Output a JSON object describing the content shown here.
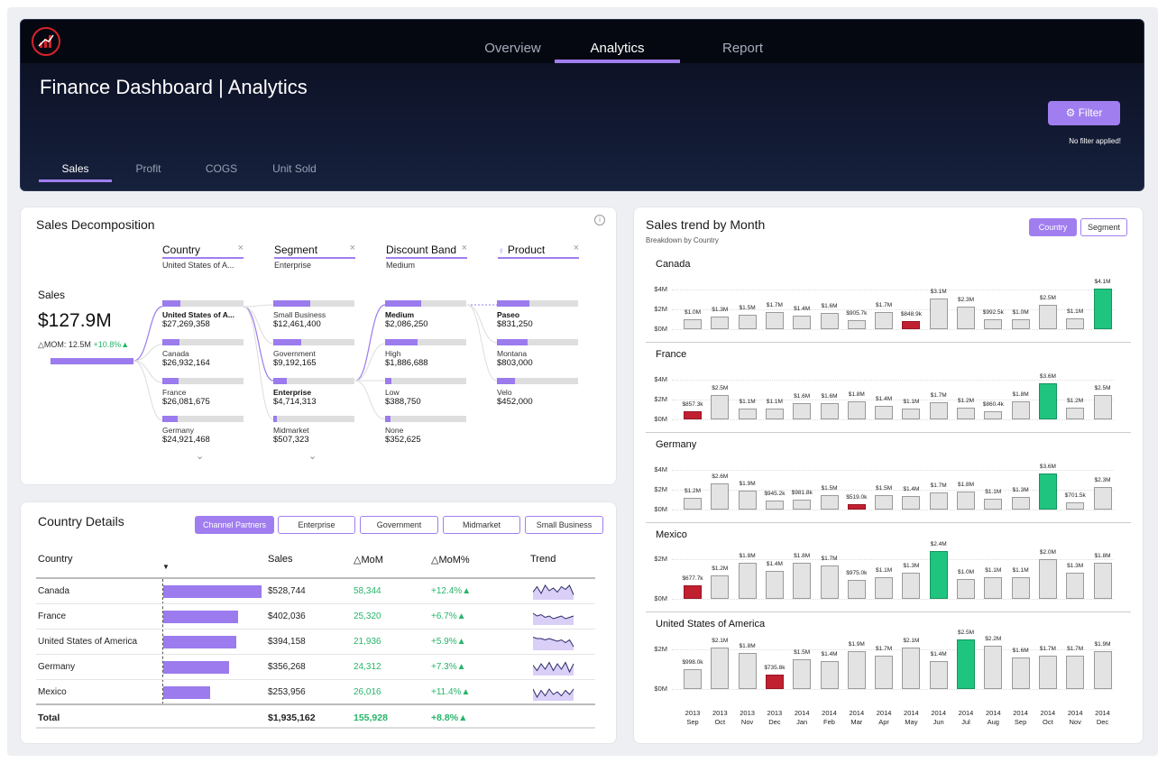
{
  "header": {
    "nav": [
      "Overview",
      "Analytics",
      "Report"
    ],
    "active_nav": "Analytics",
    "title": "Finance Dashboard | Analytics",
    "filter_label": "Filter",
    "filter_status": "No filter applied!",
    "measure_tabs": [
      "Sales",
      "Profit",
      "COGS",
      "Unit Sold"
    ],
    "accent": "#a07ef0"
  },
  "decomposition": {
    "title": "Sales Decomposition",
    "root": {
      "label": "Sales",
      "value": "$127.9M",
      "mom_label": "△MOM: 12.5M",
      "mom_pct": "+10.8%▲"
    },
    "levels": [
      {
        "header": "Country",
        "selected": "United States of A...",
        "nodes": [
          {
            "name": "United States of A...",
            "value": "$27,269,358",
            "frac": 0.22,
            "bold": true
          },
          {
            "name": "Canada",
            "value": "$26,932,164",
            "frac": 0.21
          },
          {
            "name": "France",
            "value": "$26,081,675",
            "frac": 0.2
          },
          {
            "name": "Germany",
            "value": "$24,921,468",
            "frac": 0.19
          }
        ]
      },
      {
        "header": "Segment",
        "selected": "Enterprise",
        "nodes": [
          {
            "name": "Small Business",
            "value": "$12,461,400",
            "frac": 0.46
          },
          {
            "name": "Government",
            "value": "$9,192,165",
            "frac": 0.34
          },
          {
            "name": "Enterprise",
            "value": "$4,714,313",
            "frac": 0.17,
            "bold": true
          },
          {
            "name": "Midmarket",
            "value": "$507,323",
            "frac": 0.02
          }
        ]
      },
      {
        "header": "Discount Band",
        "selected": "Medium",
        "nodes": [
          {
            "name": "Medium",
            "value": "$2,086,250",
            "frac": 0.44,
            "bold": true
          },
          {
            "name": "High",
            "value": "$1,886,688",
            "frac": 0.4
          },
          {
            "name": "Low",
            "value": "$388,750",
            "frac": 0.08
          },
          {
            "name": "None",
            "value": "$352,625",
            "frac": 0.07
          }
        ]
      },
      {
        "header": "Product",
        "selected": "",
        "nodes": [
          {
            "name": "Paseo",
            "value": "$831,250",
            "frac": 0.4,
            "bold": true
          },
          {
            "name": "Montana",
            "value": "$803,000",
            "frac": 0.38
          },
          {
            "name": "Velo",
            "value": "$452,000",
            "frac": 0.22
          }
        ]
      }
    ]
  },
  "country_details": {
    "title": "Country Details",
    "chips": [
      "Channel Partners",
      "Enterprise",
      "Government",
      "Midmarket",
      "Small Business"
    ],
    "active_chip": "Channel Partners",
    "columns": [
      "Country",
      "Sales",
      "△MoM",
      "△MoM%",
      "Trend"
    ],
    "rows": [
      {
        "country": "Canada",
        "sales": "$528,744",
        "sales_value": 528744,
        "mom": "58,344",
        "mom_pct": "+12.4%▲"
      },
      {
        "country": "France",
        "sales": "$402,036",
        "sales_value": 402036,
        "mom": "25,320",
        "mom_pct": "+6.7%▲"
      },
      {
        "country": "United States of America",
        "sales": "$394,158",
        "sales_value": 394158,
        "mom": "21,936",
        "mom_pct": "+5.9%▲"
      },
      {
        "country": "Germany",
        "sales": "$356,268",
        "sales_value": 356268,
        "mom": "24,312",
        "mom_pct": "+7.3%▲"
      },
      {
        "country": "Mexico",
        "sales": "$253,956",
        "sales_value": 253956,
        "mom": "26,016",
        "mom_pct": "+11.4%▲"
      }
    ],
    "total": {
      "label": "Total",
      "sales": "$1,935,162",
      "mom": "155,928",
      "mom_pct": "+8.8%▲"
    }
  },
  "trend": {
    "title": "Sales trend by Month",
    "subtitle": "Breakdown by Country",
    "toggle": [
      "Country",
      "Segment"
    ],
    "active_toggle": "Country",
    "colors": {
      "max": "#1fc47e",
      "min": "#c0202f",
      "normal": "#e3e3e3"
    }
  },
  "chart_data": {
    "type": "bar",
    "title": "Sales trend by Month",
    "categories": [
      "2013 Sep",
      "2013 Oct",
      "2013 Nov",
      "2013 Dec",
      "2014 Jan",
      "2014 Feb",
      "2014 Mar",
      "2014 Apr",
      "2014 May",
      "2014 Jun",
      "2014 Jul",
      "2014 Aug",
      "2014 Sep",
      "2014 Oct",
      "2014 Nov",
      "2014 Dec"
    ],
    "series": [
      {
        "name": "Canada",
        "yticks": [
          "$4M",
          "$2M",
          "$0M"
        ],
        "ymax": 4.0,
        "values": [
          1.0,
          1.3,
          1.5,
          1.7,
          1.4,
          1.6,
          0.9057,
          1.7,
          0.8489,
          3.1,
          2.3,
          0.9925,
          1.0,
          2.5,
          1.1,
          4.1
        ],
        "labels": [
          "$1.0M",
          "$1.3M",
          "$1.5M",
          "$1.7M",
          "$1.4M",
          "$1.6M",
          "$905.7k",
          "$1.7M",
          "$848.9k",
          "$3.1M",
          "$2.3M",
          "$992.5k",
          "$1.0M",
          "$2.5M",
          "$1.1M",
          "$4.1M"
        ]
      },
      {
        "name": "France",
        "yticks": [
          "$4M",
          "$2M",
          "$0M"
        ],
        "ymax": 4.0,
        "values": [
          0.8573,
          2.5,
          1.1,
          1.1,
          1.6,
          1.6,
          1.8,
          1.4,
          1.1,
          1.7,
          1.2,
          0.8604,
          1.8,
          3.6,
          1.2,
          2.5
        ],
        "labels": [
          "$857.3k",
          "$2.5M",
          "$1.1M",
          "$1.1M",
          "$1.6M",
          "$1.6M",
          "$1.8M",
          "$1.4M",
          "$1.1M",
          "$1.7M",
          "$1.2M",
          "$860.4k",
          "$1.8M",
          "$3.6M",
          "$1.2M",
          "$2.5M"
        ]
      },
      {
        "name": "Germany",
        "yticks": [
          "$4M",
          "$2M",
          "$0M"
        ],
        "ymax": 4.0,
        "values": [
          1.2,
          2.6,
          1.9,
          0.9452,
          0.9818,
          1.5,
          0.519,
          1.5,
          1.4,
          1.7,
          1.8,
          1.1,
          1.3,
          3.6,
          0.7015,
          2.3
        ],
        "labels": [
          "$1.2M",
          "$2.6M",
          "$1.9M",
          "$945.2k",
          "$981.8k",
          "$1.5M",
          "$519.0k",
          "$1.5M",
          "$1.4M",
          "$1.7M",
          "$1.8M",
          "$1.1M",
          "$1.3M",
          "$3.6M",
          "$701.5k",
          "$2.3M"
        ]
      },
      {
        "name": "Mexico",
        "yticks": [
          "$2M",
          "$0M"
        ],
        "ymax": 2.0,
        "values": [
          0.6777,
          1.2,
          1.8,
          1.4,
          1.8,
          1.7,
          0.975,
          1.1,
          1.3,
          2.4,
          1.0,
          1.1,
          1.1,
          2.0,
          1.3,
          1.8
        ],
        "labels": [
          "$677.7k",
          "$1.2M",
          "$1.8M",
          "$1.4M",
          "$1.8M",
          "$1.7M",
          "$975.0k",
          "$1.1M",
          "$1.3M",
          "$2.4M",
          "$1.0M",
          "$1.1M",
          "$1.1M",
          "$2.0M",
          "$1.3M",
          "$1.8M"
        ]
      },
      {
        "name": "United States of America",
        "yticks": [
          "$2M",
          "$0M"
        ],
        "ymax": 2.0,
        "values": [
          0.998,
          2.1,
          1.8,
          0.7358,
          1.5,
          1.4,
          1.9,
          1.7,
          2.1,
          1.4,
          2.5,
          2.2,
          1.6,
          1.7,
          1.7,
          1.9
        ],
        "labels": [
          "$998.0k",
          "$2.1M",
          "$1.8M",
          "$735.8k",
          "$1.5M",
          "$1.4M",
          "$1.9M",
          "$1.7M",
          "$2.1M",
          "$1.4M",
          "$2.5M",
          "$2.2M",
          "$1.6M",
          "$1.7M",
          "$1.7M",
          "$1.9M"
        ]
      }
    ],
    "months": [
      [
        "2013",
        "Sep"
      ],
      [
        "2013",
        "Oct"
      ],
      [
        "2013",
        "Nov"
      ],
      [
        "2013",
        "Dec"
      ],
      [
        "2014",
        "Jan"
      ],
      [
        "2014",
        "Feb"
      ],
      [
        "2014",
        "Mar"
      ],
      [
        "2014",
        "Apr"
      ],
      [
        "2014",
        "May"
      ],
      [
        "2014",
        "Jun"
      ],
      [
        "2014",
        "Jul"
      ],
      [
        "2014",
        "Aug"
      ],
      [
        "2014",
        "Sep"
      ],
      [
        "2014",
        "Oct"
      ],
      [
        "2014",
        "Nov"
      ],
      [
        "2014",
        "Dec"
      ]
    ]
  }
}
